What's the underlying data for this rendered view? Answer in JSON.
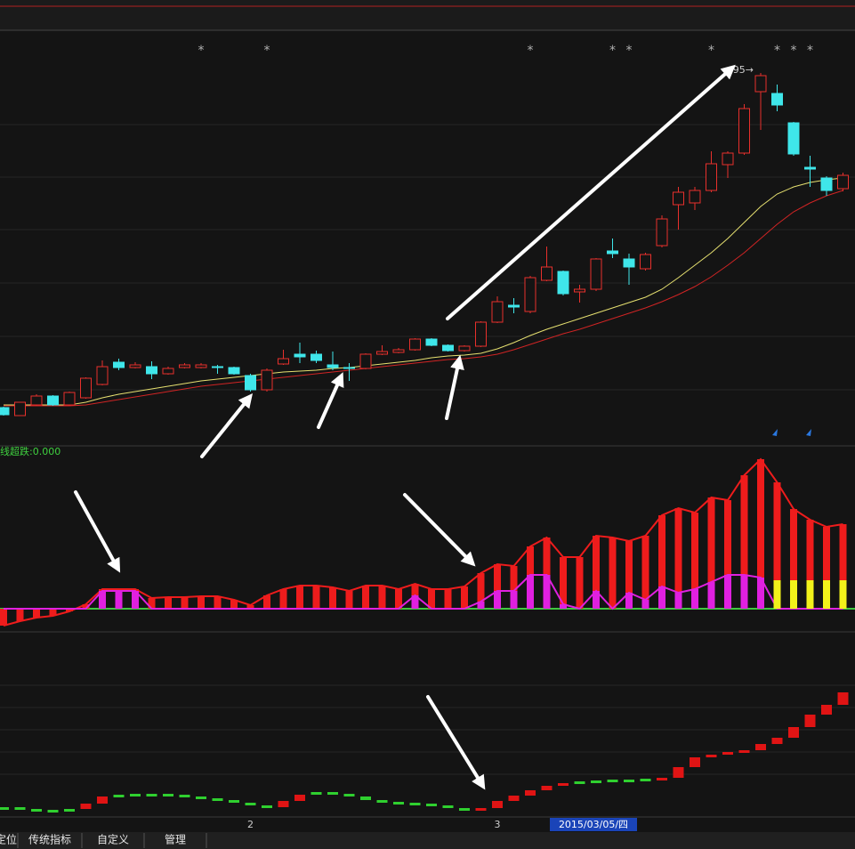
{
  "chart_data": [
    {
      "type": "candlestick",
      "categories": [
        null,
        null,
        null,
        null,
        null,
        null,
        null,
        null,
        null,
        null,
        null,
        null,
        null,
        null,
        null,
        "2",
        null,
        null,
        null,
        null,
        null,
        null,
        null,
        null,
        null,
        null,
        null,
        null,
        null,
        null,
        "3",
        null,
        null,
        null,
        null,
        null,
        null,
        null,
        null,
        null,
        null,
        null,
        null,
        null,
        null,
        null,
        null,
        null,
        null,
        null,
        null,
        null
      ],
      "open": [
        42,
        33,
        45,
        55,
        45,
        53,
        68,
        93,
        87,
        88,
        80,
        87,
        87,
        88,
        87,
        78,
        62,
        91,
        102,
        102,
        90,
        87,
        86,
        102,
        104,
        107,
        119,
        112,
        106,
        111,
        138,
        157,
        150,
        185,
        195,
        172,
        175,
        218,
        209,
        198,
        224,
        270,
        272,
        286,
        315,
        328,
        397,
        395,
        362,
        312,
        300,
        288
      ],
      "high": [
        43,
        48,
        57,
        56,
        60,
        76,
        95,
        97,
        93,
        94,
        88,
        92,
        92,
        90,
        88,
        80,
        86,
        107,
        115,
        106,
        105,
        92,
        103,
        112,
        109,
        120,
        120,
        113,
        112,
        139,
        167,
        165,
        190,
        223,
        196,
        180,
        210,
        232,
        215,
        216,
        258,
        290,
        290,
        330,
        330,
        383,
        418,
        405,
        363,
        325,
        302,
        306
      ],
      "low": [
        33,
        33,
        44,
        44,
        44,
        52,
        67,
        84,
        86,
        74,
        79,
        86,
        86,
        80,
        79,
        60,
        60,
        90,
        92,
        92,
        84,
        72,
        85,
        101,
        103,
        106,
        111,
        105,
        105,
        110,
        137,
        148,
        148,
        184,
        168,
        160,
        173,
        210,
        180,
        196,
        222,
        242,
        264,
        284,
        300,
        326,
        354,
        375,
        325,
        290,
        280,
        285
      ],
      "close": [
        34,
        48,
        55,
        45,
        59,
        75,
        88,
        87,
        90,
        80,
        86,
        90,
        90,
        87,
        80,
        62,
        84,
        97,
        99,
        95,
        87,
        86,
        102,
        105,
        107,
        119,
        112,
        106,
        111,
        138,
        161,
        155,
        188,
        200,
        170,
        175,
        209,
        215,
        200,
        214,
        254,
        284,
        286,
        316,
        328,
        378,
        415,
        382,
        327,
        310,
        286,
        303
      ],
      "up_color": "#e8302c",
      "down_color": "#3fe6ea",
      "series": [
        {
          "color": "#e6e070",
          "values": [
            45,
            45,
            45,
            45,
            45,
            48,
            53,
            57,
            60,
            63,
            66,
            69,
            72,
            74,
            76,
            78,
            80,
            82,
            83,
            84,
            86,
            87,
            89,
            91,
            93,
            95,
            98,
            100,
            101,
            103,
            108,
            115,
            123,
            130,
            136,
            142,
            148,
            154,
            160,
            166,
            175,
            188,
            202,
            216,
            232,
            250,
            268,
            282,
            290,
            295,
            298,
            300
          ]
        },
        {
          "color": "#d02424",
          "values": [
            44,
            44,
            44,
            44,
            44,
            45,
            48,
            51,
            54,
            57,
            60,
            63,
            66,
            68,
            70,
            72,
            74,
            76,
            78,
            80,
            82,
            84,
            86,
            88,
            90,
            92,
            94,
            96,
            97,
            99,
            102,
            107,
            113,
            119,
            125,
            130,
            136,
            142,
            148,
            154,
            161,
            169,
            178,
            189,
            202,
            216,
            232,
            248,
            262,
            272,
            280,
            286
          ]
        }
      ],
      "annotations": [
        null,
        null,
        null,
        null,
        null,
        null,
        null,
        null,
        null,
        null,
        null,
        null,
        "*",
        null,
        null,
        null,
        "*",
        null,
        null,
        null,
        null,
        null,
        null,
        null,
        null,
        null,
        null,
        null,
        null,
        null,
        null,
        null,
        "*",
        null,
        null,
        null,
        null,
        "*",
        "*",
        null,
        null,
        null,
        null,
        "*",
        null,
        null,
        null,
        "*",
        "*",
        "*",
        null,
        null
      ],
      "high_label": "95→",
      "ylim": [
        0,
        470
      ]
    },
    {
      "type": "bar",
      "title": "线超跌:0.000",
      "series": [
        {
          "color": "#ee1c1c",
          "line": true,
          "values": [
            -19,
            -14,
            -10,
            -8,
            -3,
            5,
            22,
            22,
            22,
            12,
            13,
            13,
            14,
            14,
            10,
            4,
            15,
            22,
            26,
            26,
            24,
            20,
            26,
            26,
            22,
            28,
            22,
            22,
            25,
            40,
            50,
            48,
            70,
            80,
            58,
            58,
            82,
            80,
            76,
            82,
            105,
            113,
            108,
            125,
            122,
            150,
            168,
            142,
            112,
            100,
            92,
            95
          ]
        },
        {
          "color": "#e020e0",
          "line": true,
          "values": [
            0,
            0,
            0,
            0,
            0,
            0,
            20,
            20,
            20,
            0,
            0,
            0,
            0,
            0,
            0,
            0,
            0,
            0,
            0,
            0,
            0,
            0,
            0,
            0,
            0,
            15,
            0,
            0,
            0,
            8,
            20,
            20,
            38,
            38,
            5,
            0,
            20,
            0,
            18,
            10,
            25,
            18,
            22,
            30,
            38,
            38,
            35,
            0,
            0,
            0,
            0,
            0
          ]
        },
        {
          "color": "#f2f21a",
          "line": false,
          "values": [
            0,
            0,
            0,
            0,
            0,
            0,
            0,
            0,
            0,
            0,
            0,
            0,
            0,
            0,
            0,
            0,
            0,
            0,
            0,
            0,
            0,
            0,
            0,
            0,
            0,
            0,
            0,
            0,
            0,
            0,
            0,
            0,
            0,
            0,
            0,
            0,
            0,
            0,
            0,
            0,
            0,
            0,
            0,
            0,
            0,
            0,
            0,
            32,
            32,
            32,
            32,
            32
          ]
        }
      ],
      "ylim": [
        -30,
        180
      ]
    },
    {
      "type": "level",
      "values": [
        8,
        6,
        5,
        5,
        6,
        12,
        20,
        22,
        23,
        23,
        22,
        20,
        18,
        16,
        13,
        10,
        8,
        15,
        22,
        25,
        23,
        20,
        16,
        14,
        13,
        12,
        10,
        7,
        5,
        7,
        15,
        21,
        27,
        32,
        35,
        37,
        38,
        39,
        39,
        40,
        41,
        53,
        64,
        67,
        70,
        72,
        79,
        86,
        98,
        112,
        123,
        137
      ],
      "colors": [
        "#2fd02f",
        "#2fd02f",
        "#2fd02f",
        "#2fd02f",
        "#2fd02f",
        "#e01414",
        "#e01414",
        "#2fd02f",
        "#2fd02f",
        "#2fd02f",
        "#2fd02f",
        "#2fd02f",
        "#2fd02f",
        "#2fd02f",
        "#2fd02f",
        "#2fd02f",
        "#2fd02f",
        "#e01414",
        "#e01414",
        "#2fd02f",
        "#2fd02f",
        "#2fd02f",
        "#2fd02f",
        "#2fd02f",
        "#2fd02f",
        "#2fd02f",
        "#2fd02f",
        "#2fd02f",
        "#2fd02f",
        "#e01414",
        "#e01414",
        "#e01414",
        "#e01414",
        "#e01414",
        "#e01414",
        "#2fd02f",
        "#2fd02f",
        "#2fd02f",
        "#2fd02f",
        "#2fd02f",
        "#e01414",
        "#e01414",
        "#e01414",
        "#e01414",
        "#e01414",
        "#e01414",
        "#e01414",
        "#e01414",
        "#e01414",
        "#e01414",
        "#e01414",
        "#e01414"
      ],
      "ylim": [
        0,
        200
      ]
    }
  ],
  "cursor_date": "2015/03/05/四",
  "tabs": [
    "定位",
    "传统指标",
    "自定义",
    "管理"
  ]
}
